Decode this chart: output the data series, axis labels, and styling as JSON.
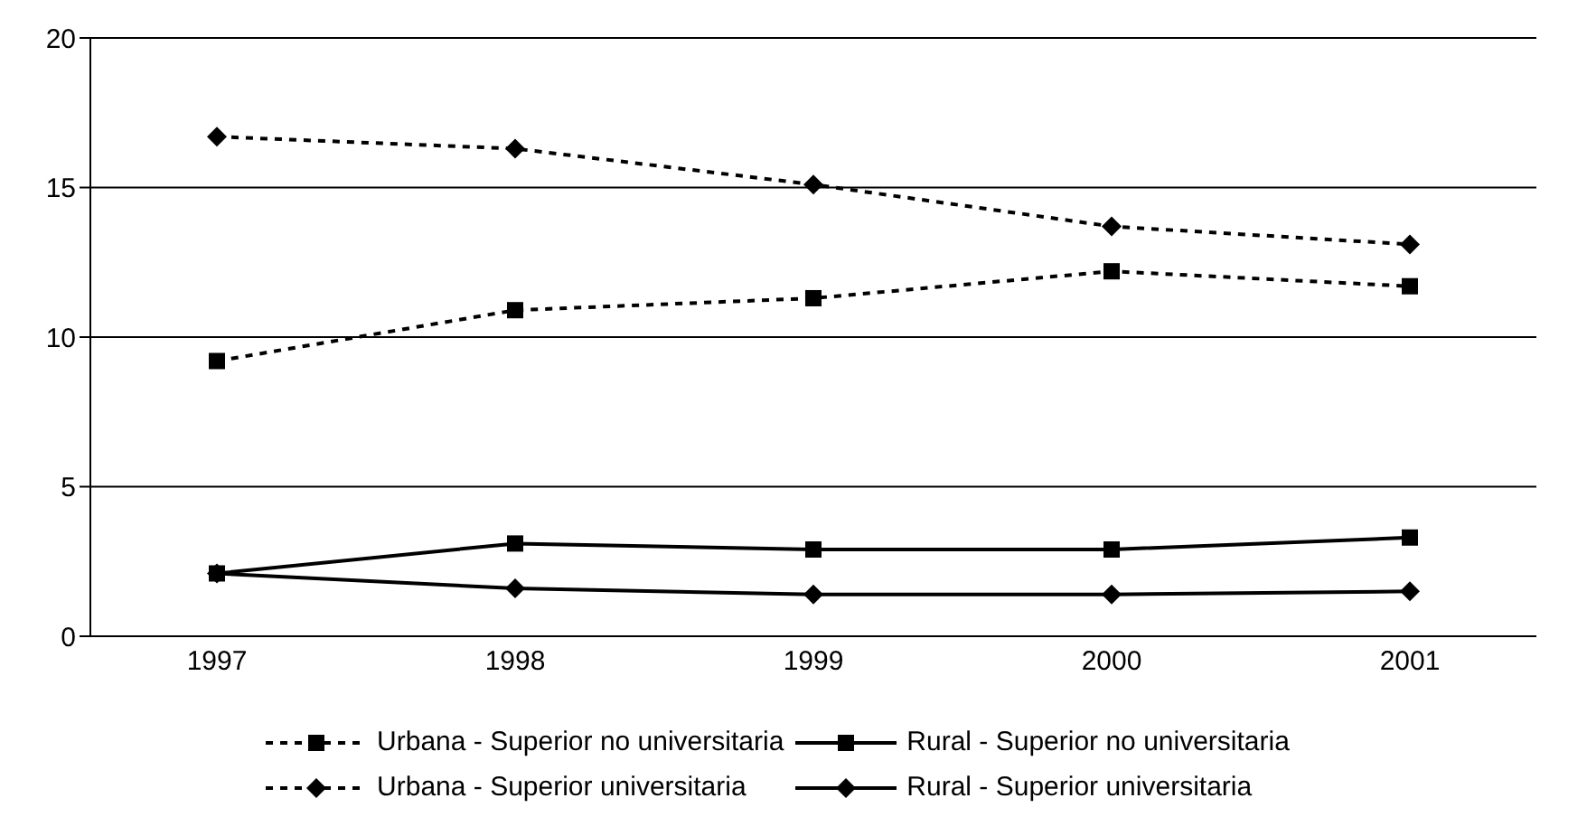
{
  "chart_data": {
    "type": "line",
    "categories": [
      "1997",
      "1998",
      "1999",
      "2000",
      "2001"
    ],
    "ylim": [
      0,
      20
    ],
    "yticks": [
      0,
      5,
      10,
      15,
      20
    ],
    "grid": "y",
    "legend": "bottom",
    "series": [
      {
        "name": "Urbana -  Superior no universitaria",
        "color": "#000000",
        "marker": "square",
        "line_style": "dashed",
        "values": [
          9.2,
          10.9,
          11.3,
          12.2,
          11.7
        ]
      },
      {
        "name": "Rural -  Superior no universitaria",
        "color": "#000000",
        "marker": "square",
        "line_style": "solid",
        "values": [
          2.1,
          3.1,
          2.9,
          2.9,
          3.3
        ]
      },
      {
        "name": "Urbana -  Superior universitaria",
        "color": "#000000",
        "marker": "diamond",
        "line_style": "dashed",
        "values": [
          16.7,
          16.3,
          15.1,
          13.7,
          13.1
        ]
      },
      {
        "name": "Rural -  Superior universitaria",
        "color": "#000000",
        "marker": "diamond",
        "line_style": "solid",
        "values": [
          2.1,
          1.6,
          1.4,
          1.4,
          1.5
        ]
      }
    ]
  }
}
